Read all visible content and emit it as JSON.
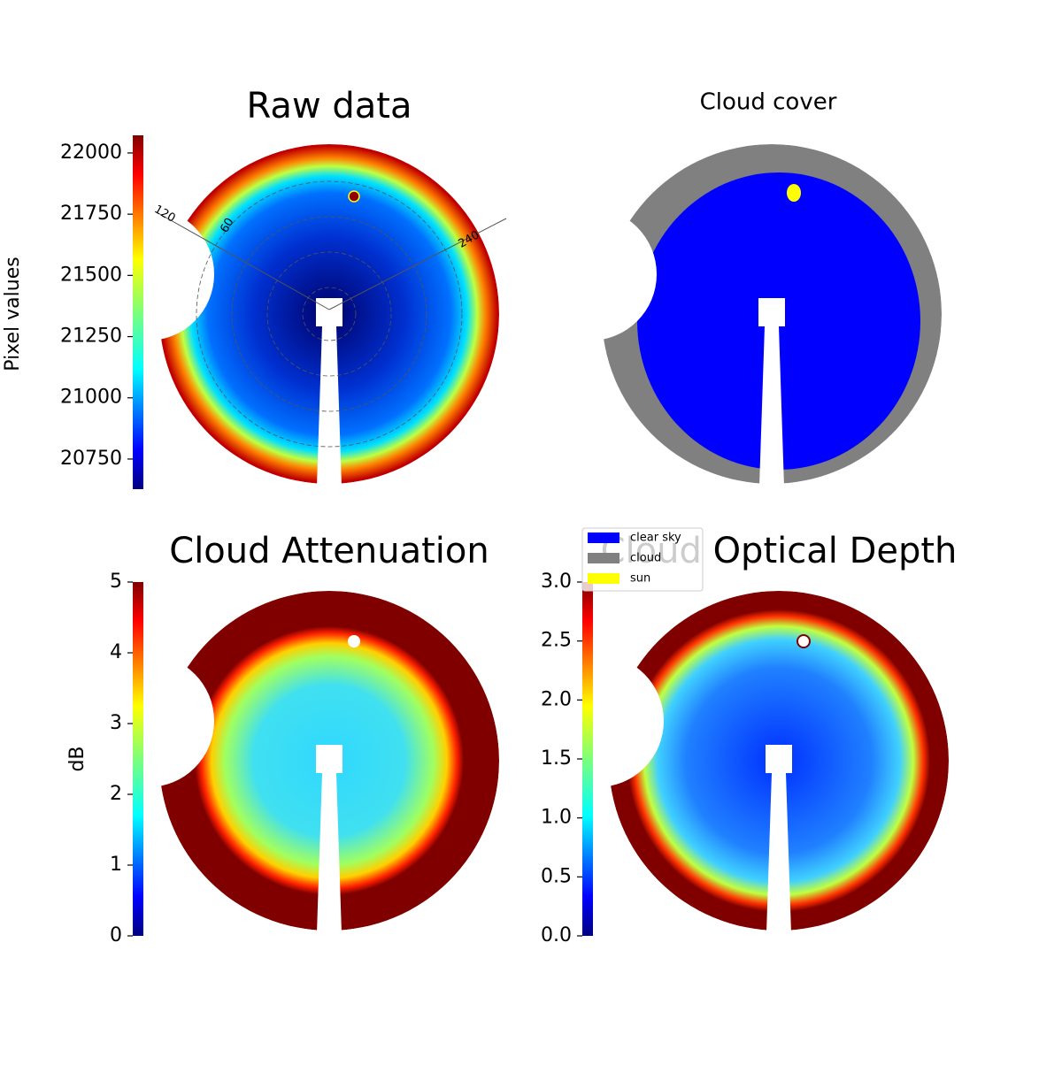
{
  "chart_data": [
    {
      "type": "image",
      "title": "Raw data",
      "colorbar": {
        "label": "Pixel values",
        "cmap": "jet",
        "lim": [
          20627,
          22072
        ],
        "ticks": [
          20750,
          21000,
          21250,
          21500,
          21750,
          22000
        ]
      },
      "polar_labels": [
        "120",
        "60",
        "240"
      ]
    },
    {
      "type": "categorical-image",
      "title": "Cloud cover",
      "legend": [
        {
          "name": "clear sky",
          "color": "#0000ff"
        },
        {
          "name": "cloud",
          "color": "#808080"
        },
        {
          "name": "sun",
          "color": "#ffff00"
        }
      ]
    },
    {
      "type": "image",
      "title": "Cloud Attenuation",
      "colorbar": {
        "label": "dB",
        "cmap": "jet",
        "lim": [
          0,
          5
        ],
        "ticks": [
          0,
          1,
          2,
          3,
          4,
          5
        ]
      }
    },
    {
      "type": "image",
      "title": "Cloud Optical Depth",
      "colorbar": {
        "cmap": "jet",
        "lim": [
          0,
          3
        ],
        "ticks": [
          {
            "value": 0,
            "label": "0.0"
          },
          0.5,
          {
            "value": 1,
            "label": "1.0"
          },
          1.5,
          {
            "value": 2,
            "label": "2.0"
          },
          2.5,
          {
            "value": 3,
            "label": "3.0"
          }
        ]
      }
    }
  ]
}
